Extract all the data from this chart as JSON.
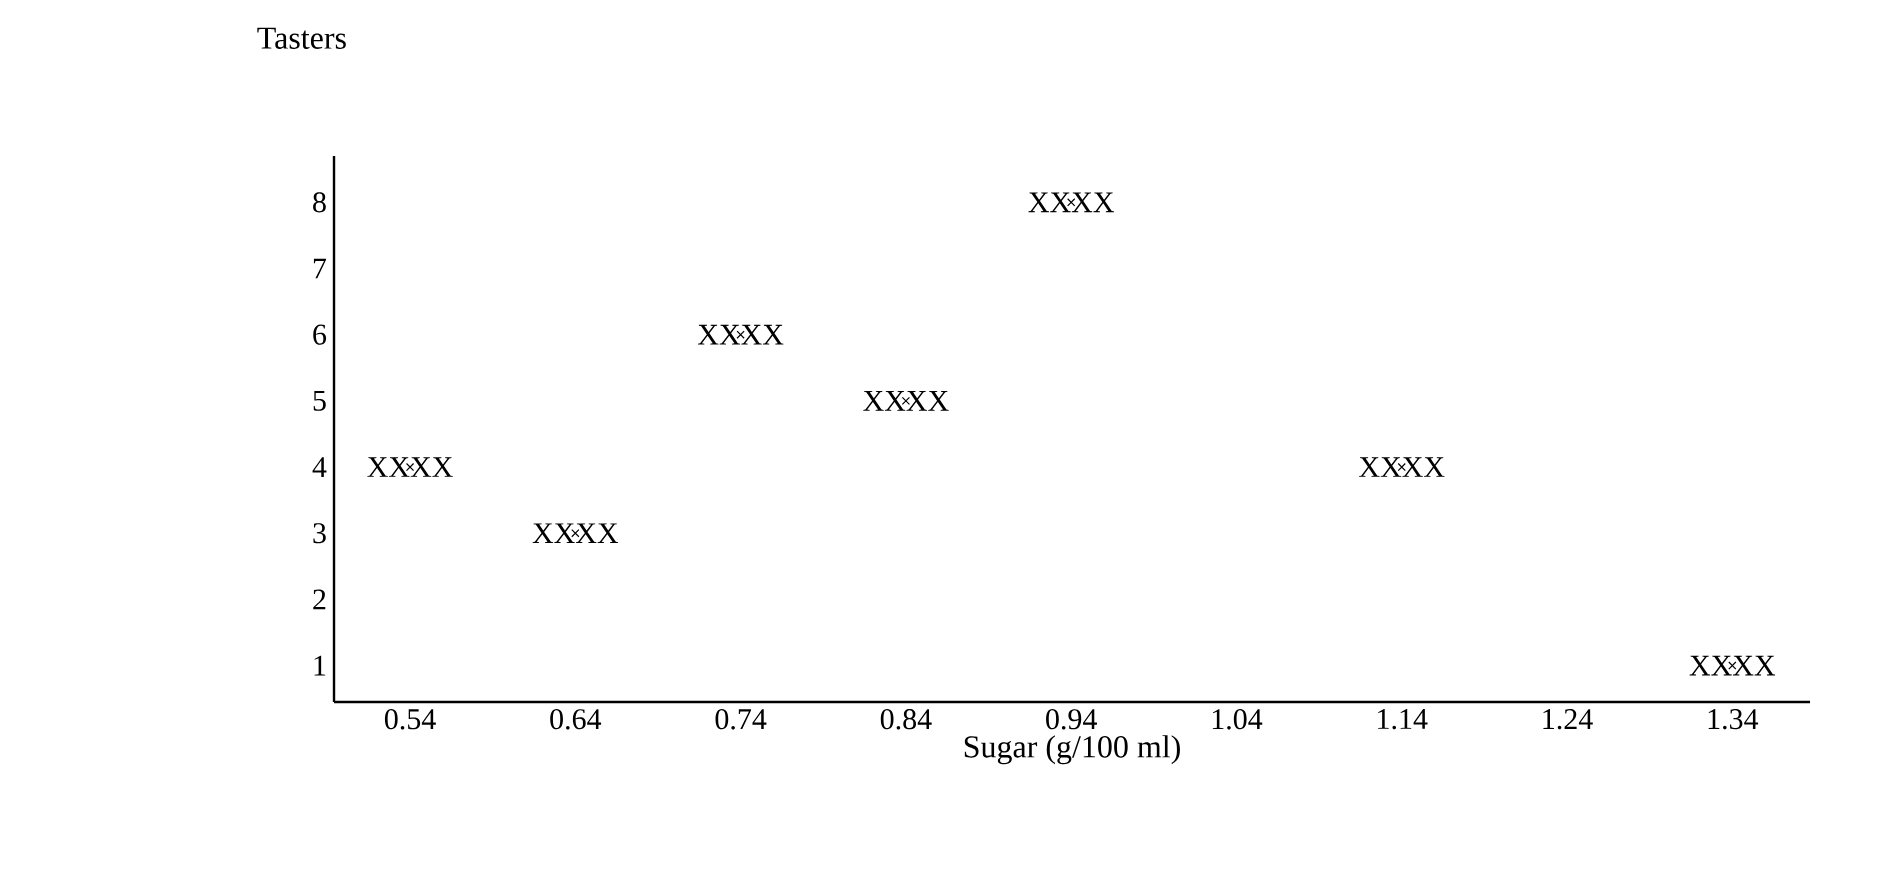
{
  "chart_data": {
    "type": "scatter",
    "xlabel": "Sugar (g/100 ml)",
    "ylabel": "Tasters",
    "categories": [
      "0.54",
      "0.64",
      "0.74",
      "0.84",
      "0.94",
      "1.04",
      "1.14",
      "1.24",
      "1.34"
    ],
    "values": [
      4,
      3,
      6,
      5,
      8,
      null,
      4,
      null,
      1
    ],
    "value_labels": [
      "XXXX",
      "XXXX",
      "XXXX",
      "XXXX",
      "XXXX",
      null,
      "XXXX",
      null,
      "XXXX"
    ],
    "marker": "cross",
    "color": "#000000",
    "ylim": [
      0.45,
      8.7
    ],
    "yticks": [
      1,
      2,
      3,
      4,
      5,
      6,
      7,
      8
    ]
  }
}
